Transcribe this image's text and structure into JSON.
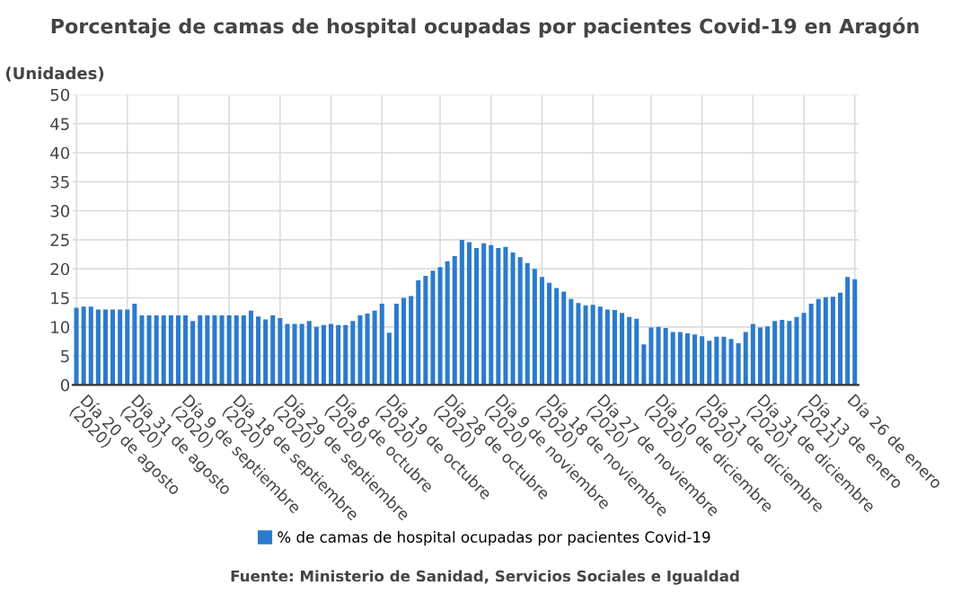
{
  "chart_data": {
    "type": "bar",
    "title": "Porcentaje de camas de hospital ocupadas por pacientes Covid-19 en Aragón",
    "ylabel": "(Unidades)",
    "categories": [
      "Día 20 de agosto\n(2020)",
      null,
      null,
      null,
      null,
      null,
      null,
      "Día 31 de agosto\n(2020)",
      null,
      null,
      null,
      null,
      null,
      null,
      "Día 9 de septiembre\n(2020)",
      null,
      null,
      null,
      null,
      null,
      null,
      "Día 18 de septiembre\n(2020)",
      null,
      null,
      null,
      null,
      null,
      null,
      "Día 29 de septiembre\n(2020)",
      null,
      null,
      null,
      null,
      null,
      null,
      "Día 8 de octubre\n(2020)",
      null,
      null,
      null,
      null,
      null,
      null,
      "Día 19 de octubre\n(2020)",
      null,
      null,
      null,
      null,
      null,
      null,
      null,
      "Día 28 de octubre\n(2020)",
      null,
      null,
      null,
      null,
      null,
      null,
      "Día 9 de noviembre\n(2020)",
      null,
      null,
      null,
      null,
      null,
      null,
      "Día 18 de noviembre\n(2020)",
      null,
      null,
      null,
      null,
      null,
      null,
      "Día 27 de noviembre\n(2020)",
      null,
      null,
      null,
      null,
      null,
      null,
      null,
      "Día 10 de diciembre\n(2020)",
      null,
      null,
      null,
      null,
      null,
      null,
      "Día 21 de diciembre\n(2020)",
      null,
      null,
      null,
      null,
      null,
      null,
      "Día 31 de diciembre\n(2020)",
      null,
      null,
      null,
      null,
      null,
      null,
      "Día 13 de enero\n(2021)",
      null,
      null,
      null,
      null,
      null,
      null,
      "Día 26 de enero"
    ],
    "series": [
      {
        "name": "% de camas de hospital ocupadas por pacientes Covid-19",
        "color": "#2b7bcc",
        "values": [
          13.3,
          13.5,
          13.5,
          13,
          13,
          13,
          13,
          13,
          14,
          12,
          12,
          12,
          12,
          12,
          12,
          12,
          11,
          12,
          12,
          12,
          12,
          12,
          12,
          12,
          12.8,
          11.8,
          11.3,
          12,
          11.5,
          10.5,
          10.5,
          10.5,
          11,
          10,
          10.3,
          10.5,
          10.3,
          10.3,
          11,
          12,
          12.3,
          12.8,
          14,
          9,
          14,
          15,
          15.3,
          18,
          18.8,
          19.7,
          20.3,
          21.3,
          22.2,
          25,
          24.6,
          23.6,
          24.4,
          24.1,
          23.6,
          23.8,
          22.8,
          22,
          21,
          20,
          18.6,
          17.6,
          16.7,
          16.1,
          14.8,
          14.1,
          13.7,
          13.8,
          13.5,
          13,
          12.9,
          12.4,
          11.7,
          11.4,
          7,
          9.9,
          10,
          9.8,
          9.1,
          9.1,
          8.9,
          8.7,
          8.4,
          7.6,
          8.3,
          8.3,
          7.9,
          7.2,
          9.1,
          10.5,
          9.9,
          10.1,
          11,
          11.2,
          11,
          11.7,
          12.4,
          14,
          14.8,
          15.1,
          15.2,
          15.9,
          18.6,
          18.2
        ]
      }
    ],
    "ylim": [
      0,
      50
    ],
    "yticks": [
      0,
      5,
      10,
      15,
      20,
      25,
      30,
      35,
      40,
      45,
      50
    ],
    "grid": true,
    "legend": "bottom",
    "annotations": [
      "Fuente: Ministerio de Sanidad, Servicios Sociales e Igualdad"
    ]
  }
}
